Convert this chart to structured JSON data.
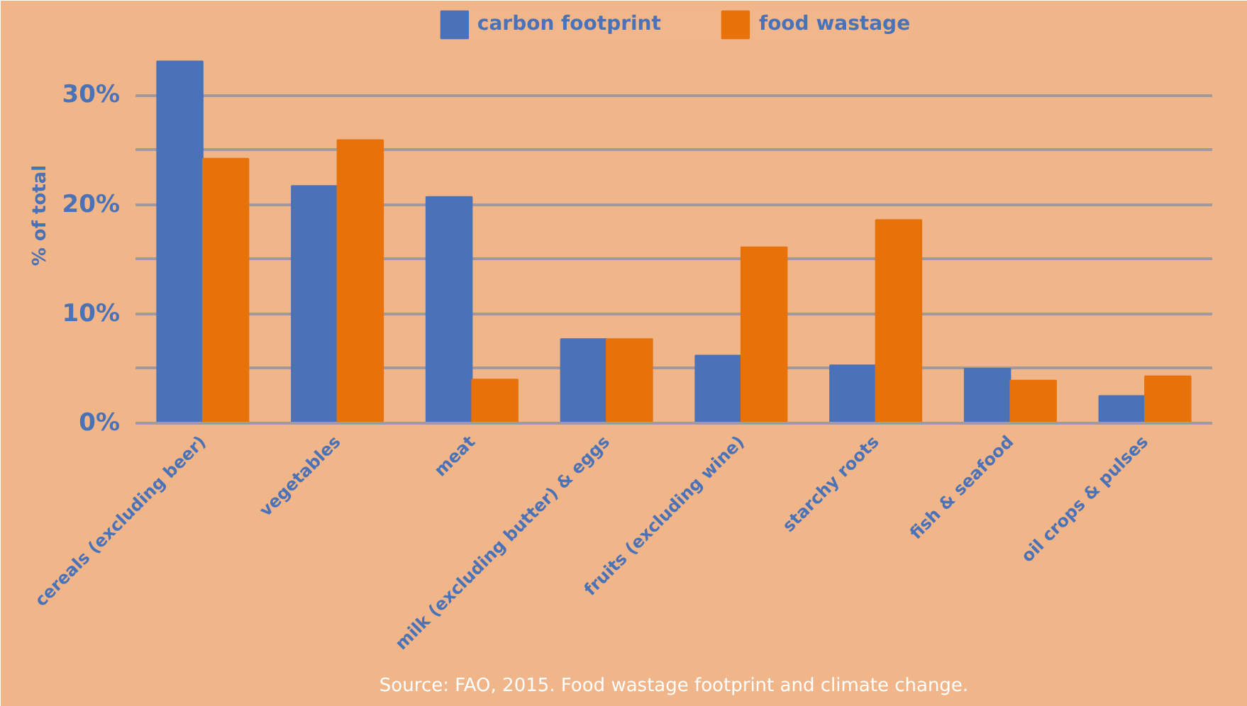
{
  "chart_data": {
    "type": "bar",
    "ylabel": "% of total",
    "categories": [
      "cereals (excluding beer)",
      "vegetables",
      "meat",
      "milk (excluding butter) & eggs",
      "fruits (excluding wine)",
      "starchy roots",
      "fish & seafood",
      "oil crops & pulses"
    ],
    "series": [
      {
        "name": "carbon footprint",
        "color": "#4a72b8",
        "values": [
          33.1,
          21.7,
          20.7,
          7.7,
          6.2,
          5.3,
          5.0,
          2.5
        ]
      },
      {
        "name": "food wastage",
        "color": "#e8720a",
        "values": [
          24.2,
          25.9,
          4.0,
          7.7,
          16.1,
          18.6,
          3.9,
          4.3
        ]
      }
    ],
    "ylim": [
      0,
      38
    ],
    "yticks": [
      {
        "value": 0,
        "label": "0%"
      },
      {
        "value": 5,
        "label": null
      },
      {
        "value": 10,
        "label": "10%"
      },
      {
        "value": 15,
        "label": null
      },
      {
        "value": 20,
        "label": "20%"
      },
      {
        "value": 25,
        "label": null
      },
      {
        "value": 30,
        "label": "30%"
      }
    ],
    "grid": "y",
    "legend": "top",
    "annotations": [
      "Source: FAO, 2015. Food wastage footprint and climate change."
    ]
  }
}
